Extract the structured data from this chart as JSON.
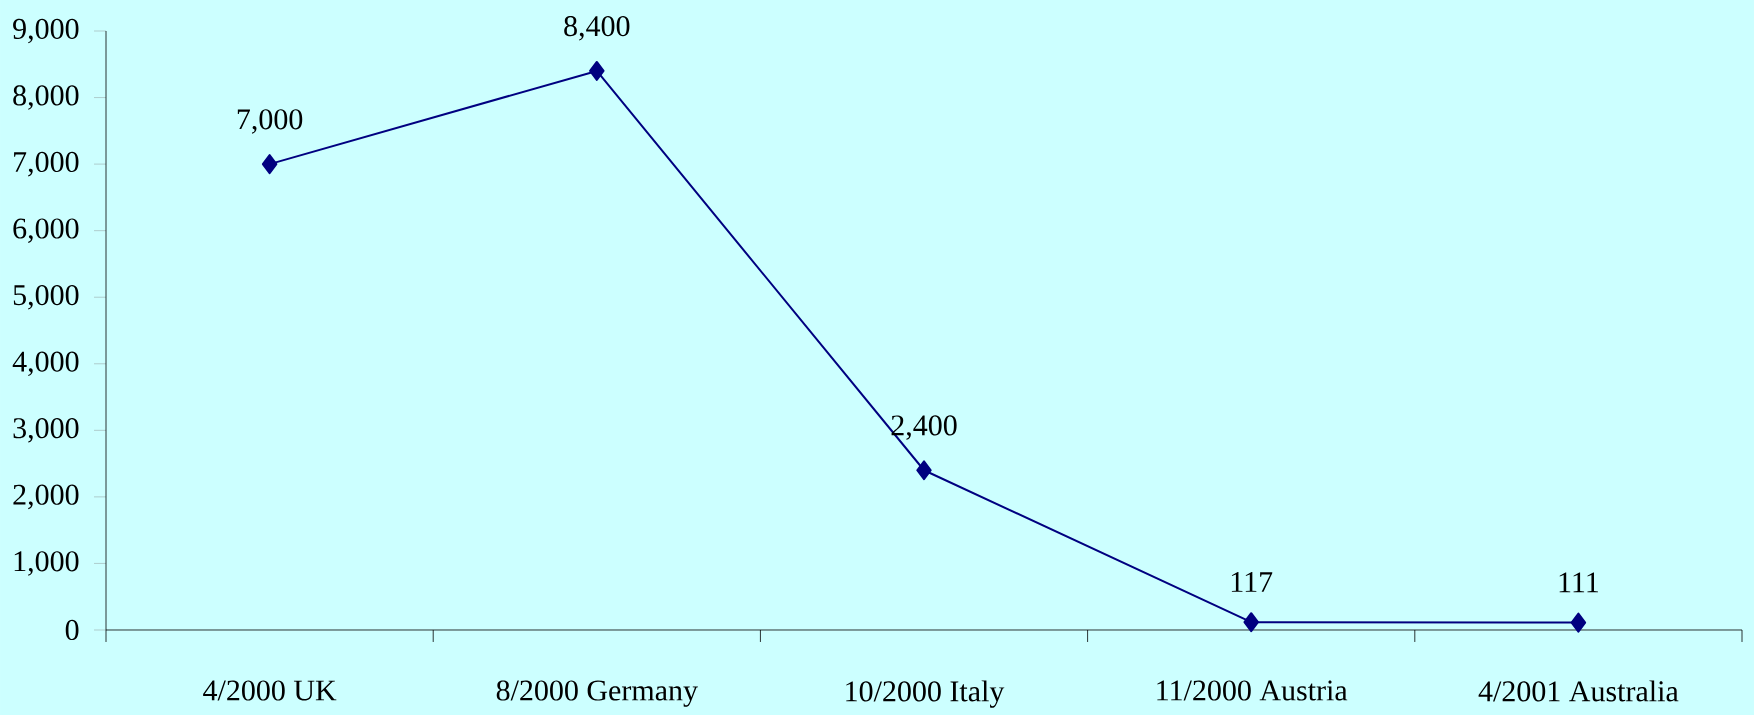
{
  "chart_data": {
    "type": "line",
    "categories": [
      "4/2000 UK",
      "8/2000 Germany",
      "10/2000 Italy",
      "11/2000 Austria",
      "4/2001 Australia"
    ],
    "series": [
      {
        "color": "#000080",
        "values": [
          7000,
          8400,
          2400,
          117,
          111
        ],
        "value_labels": [
          "7,000",
          "8,400",
          "2,400",
          "117",
          "111"
        ]
      }
    ],
    "ylim": [
      0,
      9000
    ],
    "yticks": [
      0,
      {
        "value": 1000,
        "label": "1,000"
      },
      {
        "value": 2000,
        "label": "2,000"
      },
      {
        "value": 3000,
        "label": "3,000"
      },
      {
        "value": 4000,
        "label": "4,000"
      },
      {
        "value": 5000,
        "label": "5,000"
      },
      {
        "value": 6000,
        "label": "6,000"
      },
      {
        "value": 7000,
        "label": "7,000"
      },
      {
        "value": 8000,
        "label": "8,000"
      },
      {
        "value": 9000,
        "label": "9,000"
      }
    ],
    "grid": false,
    "marker": "diamond",
    "line_style": "solid"
  }
}
